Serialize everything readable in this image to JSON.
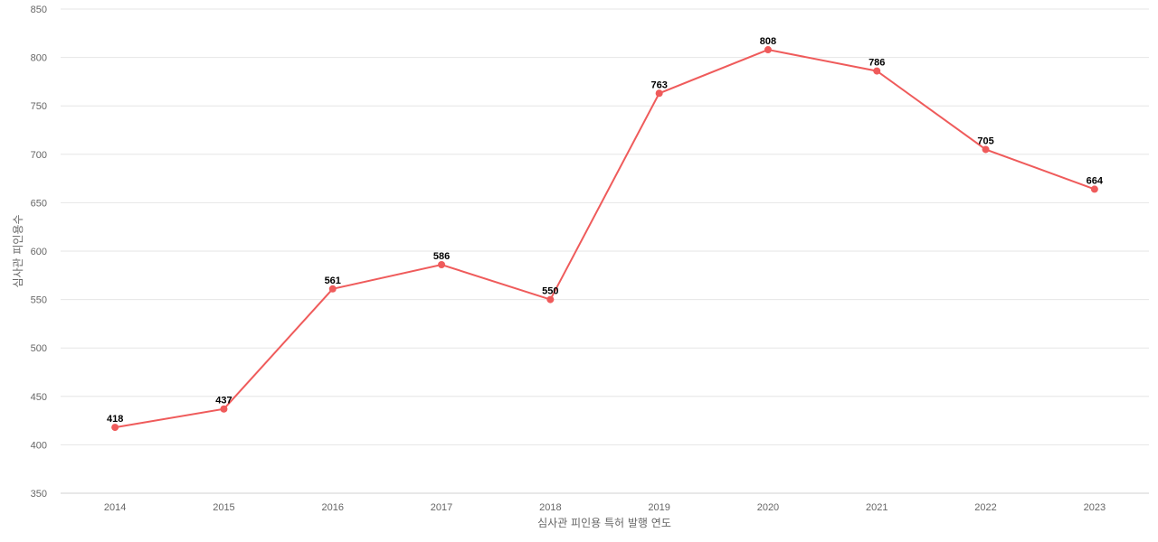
{
  "chart_data": {
    "type": "line",
    "title": "",
    "xlabel": "심사관 피인용 특허 발행 연도",
    "ylabel": "심사관 피인용수",
    "categories": [
      "2014",
      "2015",
      "2016",
      "2017",
      "2018",
      "2019",
      "2020",
      "2021",
      "2022",
      "2023"
    ],
    "series": [
      {
        "values": [
          418,
          437,
          561,
          586,
          550,
          763,
          808,
          786,
          705,
          664
        ],
        "color": "#ef5b5b"
      }
    ],
    "ylim": [
      350,
      850
    ],
    "yticks": [
      350,
      400,
      450,
      500,
      550,
      600,
      650,
      700,
      750,
      800,
      850
    ],
    "grid": true,
    "legend": "none",
    "data_labels": true
  }
}
